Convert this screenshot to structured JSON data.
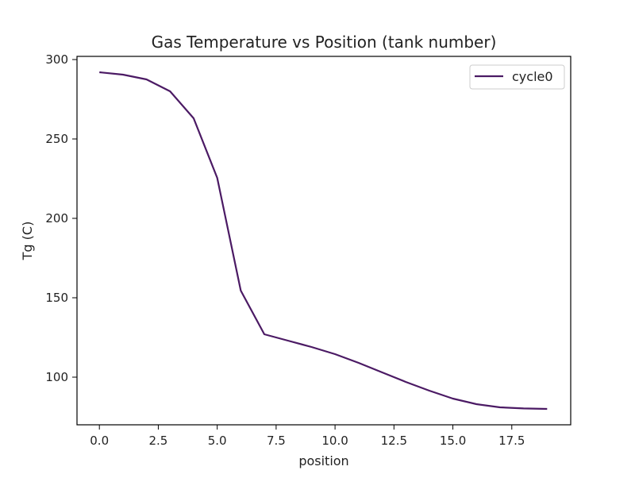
{
  "chart_data": {
    "type": "line",
    "title": "Gas Temperature vs Position (tank number)",
    "xlabel": "position",
    "ylabel": "Tg (C)",
    "xlim": [
      -0.95,
      20.0
    ],
    "ylim": [
      70.0,
      302.0
    ],
    "xticks": [
      0.0,
      2.5,
      5.0,
      7.5,
      10.0,
      12.5,
      15.0,
      17.5
    ],
    "xtick_labels": [
      "0.0",
      "2.5",
      "5.0",
      "7.5",
      "10.0",
      "12.5",
      "15.0",
      "17.5"
    ],
    "yticks": [
      100,
      150,
      200,
      250,
      300
    ],
    "ytick_labels": [
      "100",
      "150",
      "200",
      "250",
      "300"
    ],
    "grid": false,
    "legend_position": "top-right",
    "series": [
      {
        "name": "cycle0",
        "color": "#4b1a64",
        "x": [
          0,
          1,
          2,
          3,
          4,
          5,
          6,
          7,
          8,
          9,
          10,
          11,
          12,
          13,
          14,
          15,
          16,
          17,
          18,
          19
        ],
        "values": [
          292,
          290.5,
          287.5,
          280,
          263,
          225.5,
          154.5,
          127,
          123,
          119,
          114.5,
          109,
          103,
          97,
          91.5,
          86.5,
          83,
          81,
          80.3,
          80
        ]
      }
    ]
  }
}
